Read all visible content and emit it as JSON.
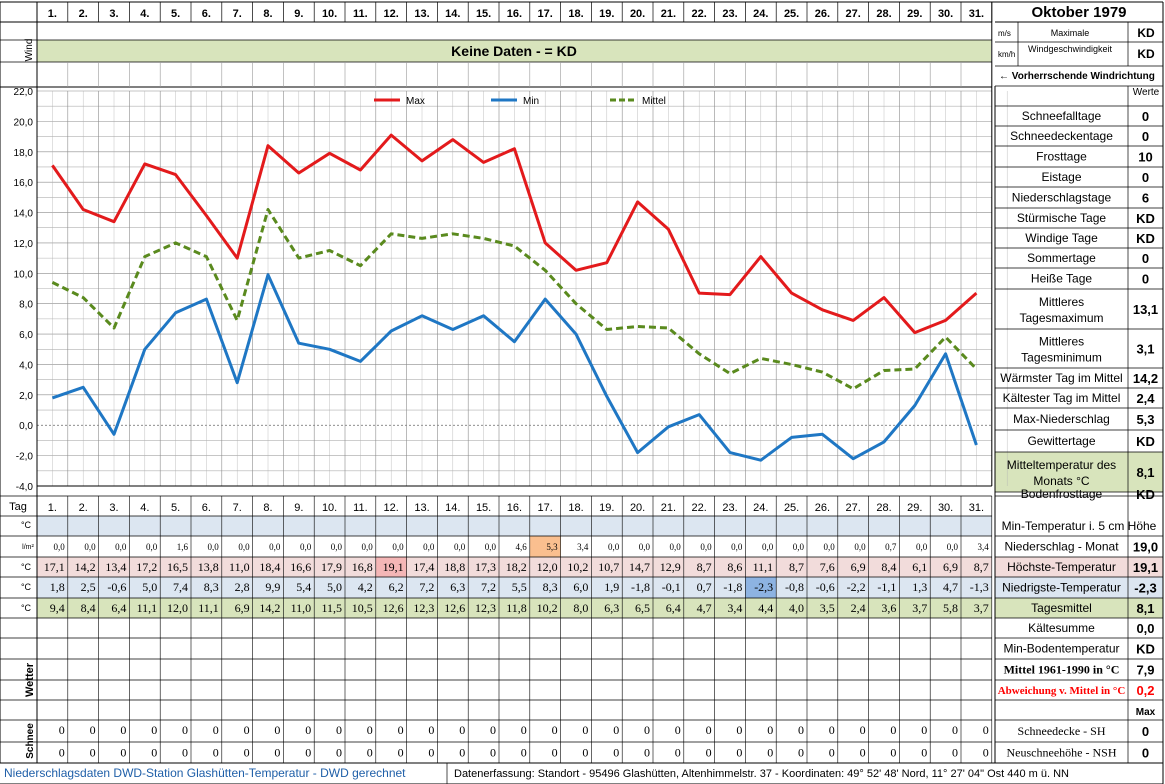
{
  "header": {
    "title": "Oktober 1979",
    "wind_label": "Wind",
    "no_data_text": "Keine Daten -  = KD",
    "unit_ms": "m/s",
    "unit_kmh": "km/h",
    "max_wind_label_1": "Maximale",
    "max_wind_label_2": "Windgeschwindigkeit",
    "max_wind_ms": "KD",
    "max_wind_kmh": "KD",
    "prevailing_wind": "← Vorherrschende Windrichtung"
  },
  "days": [
    "1.",
    "2.",
    "3.",
    "4.",
    "5.",
    "6.",
    "7.",
    "8.",
    "9.",
    "10.",
    "11.",
    "12.",
    "13.",
    "14.",
    "15.",
    "16.",
    "17.",
    "18.",
    "19.",
    "20.",
    "21.",
    "22.",
    "23.",
    "24.",
    "25.",
    "26.",
    "27.",
    "28.",
    "29.",
    "30.",
    "31."
  ],
  "chart_data": {
    "type": "line",
    "x": [
      1,
      2,
      3,
      4,
      5,
      6,
      7,
      8,
      9,
      10,
      11,
      12,
      13,
      14,
      15,
      16,
      17,
      18,
      19,
      20,
      21,
      22,
      23,
      24,
      25,
      26,
      27,
      28,
      29,
      30,
      31
    ],
    "ylim": [
      -4,
      22
    ],
    "y_ticks": [
      "22,0",
      "20,0",
      "18,0",
      "16,0",
      "14,0",
      "12,0",
      "10,0",
      "8,0",
      "6,0",
      "4,0",
      "2,0",
      "0,0",
      "-2,0",
      "-4,0"
    ],
    "legend_position": "top",
    "grid": true,
    "series": [
      {
        "name": "Max",
        "color": "#e31a1c",
        "values": [
          17.1,
          14.2,
          13.4,
          17.2,
          16.5,
          13.8,
          11.0,
          18.4,
          16.6,
          17.9,
          16.8,
          19.1,
          17.4,
          18.8,
          17.3,
          18.2,
          12.0,
          10.2,
          10.7,
          14.7,
          12.9,
          8.7,
          8.6,
          11.1,
          8.7,
          7.6,
          6.9,
          8.4,
          6.1,
          6.9,
          8.7
        ]
      },
      {
        "name": "Min",
        "color": "#1f77c4",
        "values": [
          1.8,
          2.5,
          -0.6,
          5.0,
          7.4,
          8.3,
          2.8,
          9.9,
          5.4,
          5.0,
          4.2,
          6.2,
          7.2,
          6.3,
          7.2,
          5.5,
          8.3,
          6.0,
          1.9,
          -1.8,
          -0.1,
          0.7,
          -1.8,
          -2.3,
          -0.8,
          -0.6,
          -2.2,
          -1.1,
          1.3,
          4.7,
          -1.3
        ]
      },
      {
        "name": "Mittel",
        "color": "#5a8a1e",
        "values": [
          9.4,
          8.4,
          6.4,
          11.1,
          12.0,
          11.1,
          6.9,
          14.2,
          11.0,
          11.5,
          10.5,
          12.6,
          12.3,
          12.6,
          12.3,
          11.8,
          10.2,
          8.0,
          6.3,
          6.5,
          6.4,
          4.7,
          3.4,
          4.4,
          4.0,
          3.5,
          2.4,
          3.6,
          3.7,
          5.8,
          3.7
        ]
      }
    ]
  },
  "table": {
    "tag_label": "Tag",
    "unit_c": "°C",
    "unit_lm2": "l/m²",
    "wetter_label": "Wetter",
    "schnee_label": "Schnee",
    "precip": [
      "0,0",
      "0,0",
      "0,0",
      "0,0",
      "1,6",
      "0,0",
      "0,0",
      "0,0",
      "0,0",
      "0,0",
      "0,0",
      "0,0",
      "0,0",
      "0,0",
      "0,0",
      "4,6",
      "5,3",
      "3,4",
      "0,0",
      "0,0",
      "0,0",
      "0,0",
      "0,0",
      "0,0",
      "0,0",
      "0,0",
      "0,0",
      "0,7",
      "0,0",
      "0,0",
      "3,4"
    ],
    "max": [
      "17,1",
      "14,2",
      "13,4",
      "17,2",
      "16,5",
      "13,8",
      "11,0",
      "18,4",
      "16,6",
      "17,9",
      "16,8",
      "19,1",
      "17,4",
      "18,8",
      "17,3",
      "18,2",
      "12,0",
      "10,2",
      "10,7",
      "14,7",
      "12,9",
      "8,7",
      "8,6",
      "11,1",
      "8,7",
      "7,6",
      "6,9",
      "8,4",
      "6,1",
      "6,9",
      "8,7"
    ],
    "min": [
      "1,8",
      "2,5",
      "-0,6",
      "5,0",
      "7,4",
      "8,3",
      "2,8",
      "9,9",
      "5,4",
      "5,0",
      "4,2",
      "6,2",
      "7,2",
      "6,3",
      "7,2",
      "5,5",
      "8,3",
      "6,0",
      "1,9",
      "-1,8",
      "-0,1",
      "0,7",
      "-1,8",
      "-2,3",
      "-0,8",
      "-0,6",
      "-2,2",
      "-1,1",
      "1,3",
      "4,7",
      "-1,3"
    ],
    "mean": [
      "9,4",
      "8,4",
      "6,4",
      "11,1",
      "12,0",
      "11,1",
      "6,9",
      "14,2",
      "11,0",
      "11,5",
      "10,5",
      "12,6",
      "12,3",
      "12,6",
      "12,3",
      "11,8",
      "10,2",
      "8,0",
      "6,3",
      "6,5",
      "6,4",
      "4,7",
      "3,4",
      "4,4",
      "4,0",
      "3,5",
      "2,4",
      "3,6",
      "3,7",
      "5,8",
      "3,7"
    ],
    "snow_sh": [
      "0",
      "0",
      "0",
      "0",
      "0",
      "0",
      "0",
      "0",
      "0",
      "0",
      "0",
      "0",
      "0",
      "0",
      "0",
      "0",
      "0",
      "0",
      "0",
      "0",
      "0",
      "0",
      "0",
      "0",
      "0",
      "0",
      "0",
      "0",
      "0",
      "0",
      "0"
    ],
    "snow_nsh": [
      "0",
      "0",
      "0",
      "0",
      "0",
      "0",
      "0",
      "0",
      "0",
      "0",
      "0",
      "0",
      "0",
      "0",
      "0",
      "0",
      "0",
      "0",
      "0",
      "0",
      "0",
      "0",
      "0",
      "0",
      "0",
      "0",
      "0",
      "0",
      "0",
      "0",
      "0"
    ]
  },
  "stats": {
    "werte_label": "Werte",
    "rows": [
      {
        "label": "Schneefalltage",
        "value": "0"
      },
      {
        "label": "Schneedeckentage",
        "value": "0"
      },
      {
        "label": "Frosttage",
        "value": "10"
      },
      {
        "label": "Eistage",
        "value": "0"
      },
      {
        "label": "Niederschlagstage",
        "value": "6"
      },
      {
        "label": "Stürmische Tage",
        "value": "KD"
      },
      {
        "label": "Windige Tage",
        "value": "KD"
      },
      {
        "label": "Sommertage",
        "value": "0"
      },
      {
        "label": "Heiße Tage",
        "value": "0"
      },
      {
        "label": "Mittleres Tagesmaximum",
        "value": "13,1"
      },
      {
        "label": "Mittleres Tagesminimum",
        "value": "3,1"
      },
      {
        "label": "Wärmster Tag im Mittel",
        "value": "14,2"
      },
      {
        "label": "Kältester Tag im Mittel",
        "value": "2,4"
      },
      {
        "label": "Max-Niederschlag",
        "value": "5,3"
      },
      {
        "label": "Gewittertage",
        "value": "KD"
      },
      {
        "label": "Mitteltemperatur des Monats °C",
        "value": "8,1"
      },
      {
        "label": "Bodenfrosttage",
        "value": "KD"
      }
    ],
    "lower": [
      {
        "label": "Min-Temperatur i. 5 cm Höhe",
        "value": ""
      },
      {
        "label": "Niederschlag - Monat",
        "value": "19,0"
      },
      {
        "label": "Höchste-Temperatur",
        "value": "19,1"
      },
      {
        "label": "Niedrigste-Temperatur",
        "value": "-2,3"
      },
      {
        "label": "Tagesmittel",
        "value": "8,1"
      },
      {
        "label": "Kältesumme",
        "value": "0,0"
      },
      {
        "label": "Min-Bodentemperatur",
        "value": "KD"
      },
      {
        "label": "Mittel 1961-1990 in °C",
        "value": "7,9"
      },
      {
        "label": "Abweichung v. Mittel in °C",
        "value": "0,2"
      },
      {
        "label": "",
        "value": "Max"
      },
      {
        "label": "Schneedecke -   SH",
        "value": "0"
      },
      {
        "label": "Neuschneehöhe - NSH",
        "value": "0"
      }
    ]
  },
  "footer": {
    "left": "Niederschlagsdaten DWD-Station Glashütten-Temperatur -  DWD gerechnet",
    "right": "Datenerfassung:  Standort -  95496  Glashütten, Altenhimmelstr. 37 - Koordinaten:  49° 52' 48' Nord,   11° 27' 04\" Ost   440 m ü. NN"
  },
  "colors": {
    "grid": "#b0b0b0",
    "row_blue": "#dce6f1",
    "row_red": "#f2dcdb",
    "row_green": "#d8e4bc",
    "highlight_max": "#f4b6b6",
    "highlight_min": "#8db3e2",
    "highlight_precip": "#fabf8f",
    "deviation": "#ff0000"
  }
}
